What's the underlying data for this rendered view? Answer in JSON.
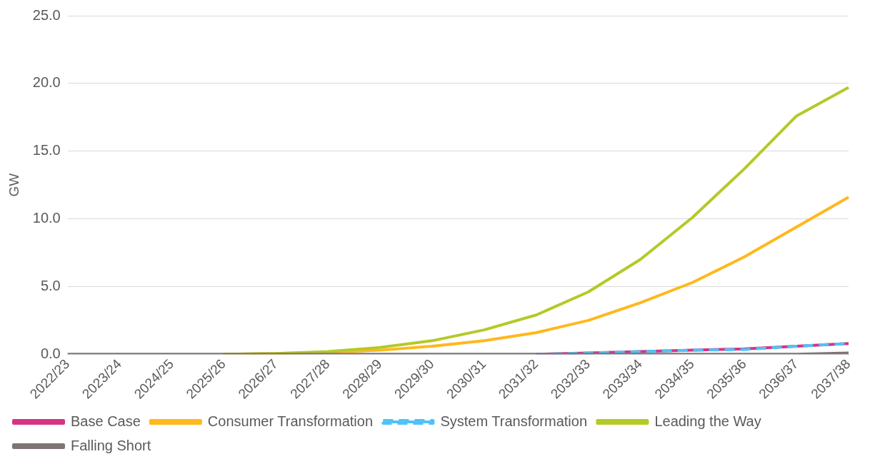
{
  "chart_data": {
    "type": "line",
    "ylabel": "GW",
    "categories": [
      "2022/23",
      "2023/24",
      "2024/25",
      "2025/26",
      "2026/27",
      "2027/28",
      "2028/29",
      "2029/30",
      "2030/31",
      "2031/32",
      "2032/33",
      "2033/34",
      "2034/35",
      "2035/36",
      "2036/37",
      "2037/38"
    ],
    "series": [
      {
        "name": "Base Case",
        "color": "#d63384",
        "line_style": "solid",
        "values": [
          null,
          null,
          null,
          null,
          null,
          null,
          null,
          null,
          null,
          0,
          0.1,
          0.2,
          0.3,
          0.4,
          0.6,
          0.8
        ]
      },
      {
        "name": "Consumer Transformation",
        "color": "#ffb81c",
        "line_style": "solid",
        "values": [
          null,
          null,
          null,
          0,
          0.05,
          0.15,
          0.3,
          0.6,
          1.0,
          1.6,
          2.5,
          3.8,
          5.3,
          7.2,
          9.4,
          11.6
        ]
      },
      {
        "name": "System Transformation",
        "color": "#4fc3f7",
        "line_style": "dashed",
        "values": [
          null,
          null,
          null,
          null,
          null,
          null,
          null,
          null,
          null,
          0,
          0.1,
          0.2,
          0.3,
          0.35,
          0.6,
          0.8
        ]
      },
      {
        "name": "Leading the Way",
        "color": "#b5c927",
        "line_style": "solid",
        "values": [
          null,
          null,
          null,
          0,
          0.05,
          0.2,
          0.5,
          1.0,
          1.8,
          2.9,
          4.6,
          7.0,
          10.1,
          13.7,
          17.6,
          19.7
        ]
      },
      {
        "name": "Falling Short",
        "color": "#7f7574",
        "line_style": "solid",
        "values": [
          0,
          0,
          0,
          0,
          0,
          0,
          0,
          0,
          0,
          0,
          0,
          0,
          0,
          0,
          0,
          0.1
        ]
      }
    ],
    "ylim": [
      0,
      25
    ],
    "yticks": [
      {
        "value": 0,
        "label": "0.0"
      },
      {
        "value": 5,
        "label": "5.0"
      },
      {
        "value": 10,
        "label": "10.0"
      },
      {
        "value": 15,
        "label": "15.0"
      },
      {
        "value": 20,
        "label": "20.0"
      },
      {
        "value": 25,
        "label": "25.0"
      }
    ],
    "grid": "y",
    "legend": "bottom",
    "marker": "none"
  }
}
